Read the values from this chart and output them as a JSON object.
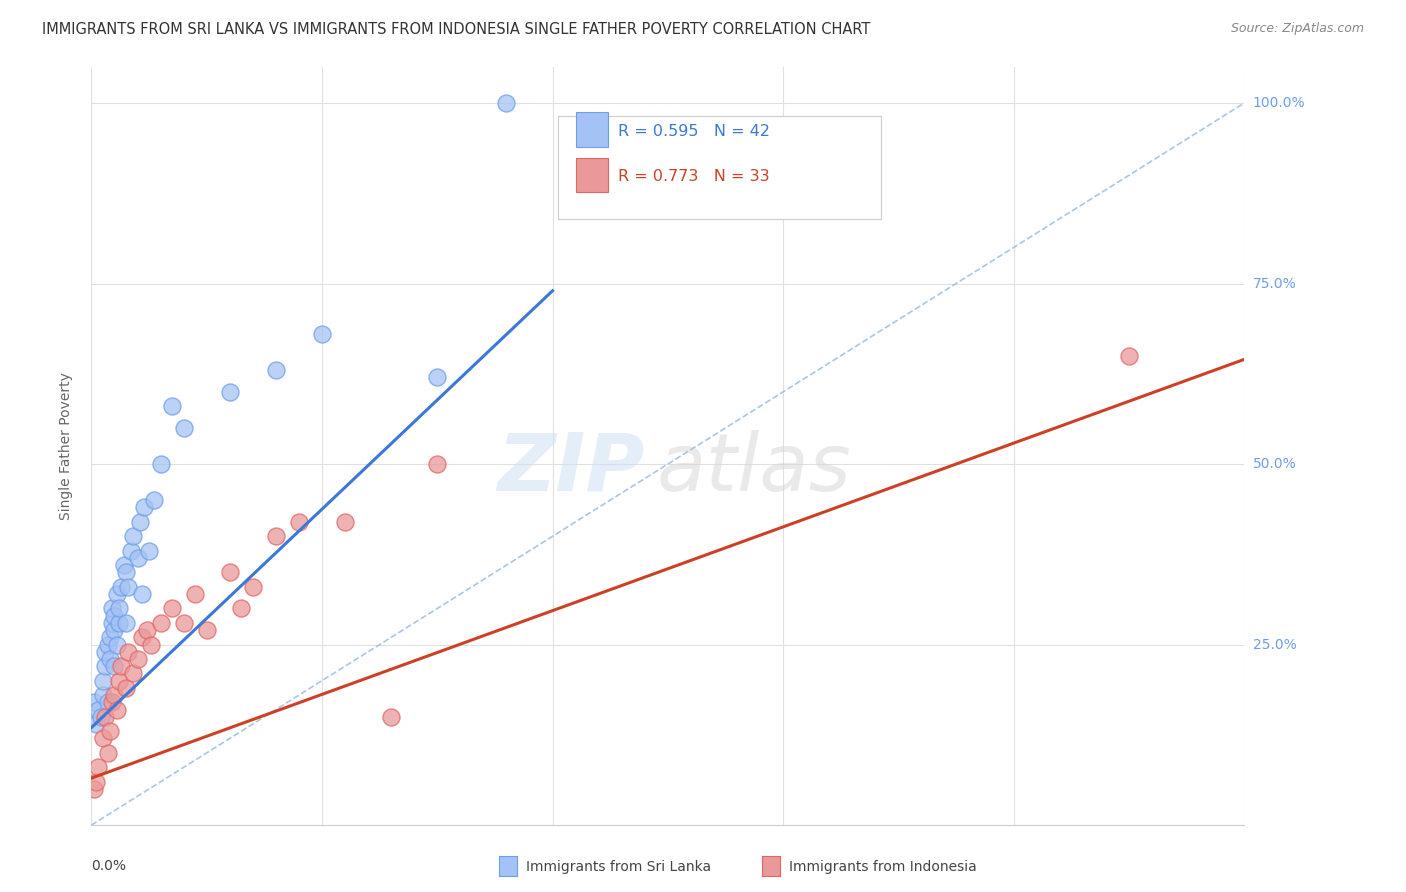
{
  "title": "IMMIGRANTS FROM SRI LANKA VS IMMIGRANTS FROM INDONESIA SINGLE FATHER POVERTY CORRELATION CHART",
  "source": "Source: ZipAtlas.com",
  "ylabel": "Single Father Poverty",
  "legend_blue": {
    "R": "0.595",
    "N": "42",
    "label": "Immigrants from Sri Lanka"
  },
  "legend_pink": {
    "R": "0.773",
    "N": "33",
    "label": "Immigrants from Indonesia"
  },
  "blue_fill_color": "#a4c2f4",
  "blue_edge_color": "#6d9eeb",
  "pink_fill_color": "#ea9999",
  "pink_edge_color": "#e06666",
  "blue_line_color": "#3c78d8",
  "pink_line_color": "#cc4125",
  "diagonal_color": "#a0c0e0",
  "grid_color": "#e0e0e0",
  "bg_color": "#ffffff",
  "right_axis_color": "#6d9eeb",
  "sri_lanka_x": [
    0.0001,
    0.0002,
    0.0003,
    0.0004,
    0.0005,
    0.0005,
    0.0006,
    0.0006,
    0.0007,
    0.0007,
    0.0008,
    0.0008,
    0.0009,
    0.0009,
    0.001,
    0.001,
    0.001,
    0.0011,
    0.0011,
    0.0012,
    0.0012,
    0.0013,
    0.0014,
    0.0015,
    0.0015,
    0.0016,
    0.0017,
    0.0018,
    0.002,
    0.0021,
    0.0022,
    0.0023,
    0.0025,
    0.0027,
    0.003,
    0.0035,
    0.004,
    0.006,
    0.008,
    0.01,
    0.015,
    0.018
  ],
  "sri_lanka_y": [
    0.17,
    0.14,
    0.16,
    0.15,
    0.18,
    0.2,
    0.22,
    0.24,
    0.25,
    0.17,
    0.23,
    0.26,
    0.28,
    0.3,
    0.22,
    0.27,
    0.29,
    0.25,
    0.32,
    0.28,
    0.3,
    0.33,
    0.36,
    0.35,
    0.28,
    0.33,
    0.38,
    0.4,
    0.37,
    0.42,
    0.32,
    0.44,
    0.38,
    0.45,
    0.5,
    0.58,
    0.55,
    0.6,
    0.63,
    0.68,
    0.62,
    1.0
  ],
  "indonesia_x": [
    0.0001,
    0.0002,
    0.0003,
    0.0005,
    0.0006,
    0.0007,
    0.0008,
    0.0009,
    0.001,
    0.0011,
    0.0012,
    0.0013,
    0.0015,
    0.0016,
    0.0018,
    0.002,
    0.0022,
    0.0024,
    0.0026,
    0.003,
    0.0035,
    0.004,
    0.0045,
    0.005,
    0.006,
    0.0065,
    0.007,
    0.008,
    0.009,
    0.011,
    0.013,
    0.015,
    0.045
  ],
  "indonesia_y": [
    0.05,
    0.06,
    0.08,
    0.12,
    0.15,
    0.1,
    0.13,
    0.17,
    0.18,
    0.16,
    0.2,
    0.22,
    0.19,
    0.24,
    0.21,
    0.23,
    0.26,
    0.27,
    0.25,
    0.28,
    0.3,
    0.28,
    0.32,
    0.27,
    0.35,
    0.3,
    0.33,
    0.4,
    0.42,
    0.42,
    0.15,
    0.5,
    0.65
  ],
  "blue_trendline_x": [
    0.0,
    0.02
  ],
  "blue_trendline_y": [
    0.135,
    0.74
  ],
  "pink_trendline_x": [
    0.0,
    0.05
  ],
  "pink_trendline_y": [
    0.065,
    0.645
  ],
  "xlim": [
    0.0,
    0.05
  ],
  "ylim": [
    0.0,
    1.05
  ],
  "right_ytick_vals": [
    0.25,
    0.5,
    0.75,
    1.0
  ],
  "right_ytick_labels": [
    "25.0%",
    "50.0%",
    "75.0%",
    "100.0%"
  ]
}
